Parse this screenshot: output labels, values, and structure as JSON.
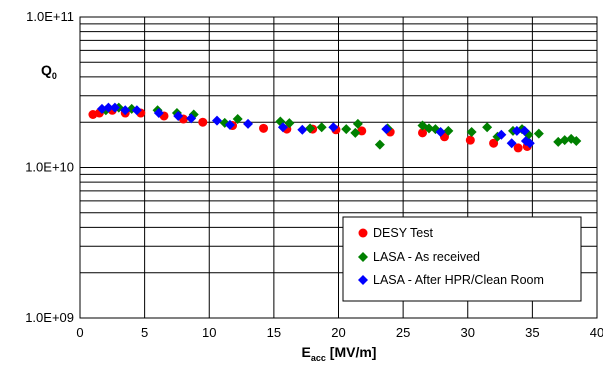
{
  "chart_data": {
    "type": "scatter",
    "title": "",
    "xlabel_main": "E",
    "xlabel_sub": "acc",
    "xlabel_unit": " [MV/m]",
    "ylabel_main": "Q",
    "ylabel_sub": "0",
    "xlim": [
      0,
      40
    ],
    "ylim": [
      1000000000,
      100000000000
    ],
    "yscale": "log",
    "grid": true,
    "legend_position": "lower-right",
    "x_ticks": [
      0,
      5,
      10,
      15,
      20,
      25,
      30,
      35,
      40
    ],
    "x_tick_labels": [
      "0",
      "5",
      "10",
      "15",
      "20",
      "25",
      "30",
      "35",
      "40"
    ],
    "y_ticks": [
      1000000000,
      10000000000,
      100000000000
    ],
    "y_tick_labels": [
      "1.0E+09",
      "1.0E+10",
      "1.0E+11"
    ],
    "series": [
      {
        "name": "DESY Test",
        "marker": "circle",
        "color": "#ff0000",
        "points": [
          [
            1.0,
            22500000000.0
          ],
          [
            1.5,
            23000000000.0
          ],
          [
            2.5,
            24000000000.0
          ],
          [
            3.5,
            23000000000.0
          ],
          [
            4.7,
            23000000000.0
          ],
          [
            6.5,
            22000000000.0
          ],
          [
            8.0,
            21000000000.0
          ],
          [
            9.5,
            20000000000.0
          ],
          [
            11.8,
            19000000000.0
          ],
          [
            14.2,
            18200000000.0
          ],
          [
            16.0,
            18000000000.0
          ],
          [
            18.0,
            18000000000.0
          ],
          [
            19.8,
            17800000000.0
          ],
          [
            21.8,
            17500000000.0
          ],
          [
            24.0,
            17200000000.0
          ],
          [
            26.5,
            17000000000.0
          ],
          [
            28.2,
            16000000000.0
          ],
          [
            30.2,
            15200000000.0
          ],
          [
            32.0,
            14500000000.0
          ],
          [
            33.9,
            13500000000.0
          ],
          [
            34.6,
            13800000000.0
          ]
        ]
      },
      {
        "name": "LASA - As received",
        "marker": "diamond",
        "color": "#008000",
        "points": [
          [
            2.0,
            24000000000.0
          ],
          [
            3.0,
            25000000000.0
          ],
          [
            4.0,
            24500000000.0
          ],
          [
            6.0,
            24000000000.0
          ],
          [
            7.5,
            23000000000.0
          ],
          [
            8.8,
            22500000000.0
          ],
          [
            11.2,
            19800000000.0
          ],
          [
            12.2,
            21000000000.0
          ],
          [
            15.5,
            20200000000.0
          ],
          [
            16.2,
            19700000000.0
          ],
          [
            17.8,
            18200000000.0
          ],
          [
            18.7,
            18500000000.0
          ],
          [
            20.6,
            18000000000.0
          ],
          [
            21.3,
            17000000000.0
          ],
          [
            21.5,
            19500000000.0
          ],
          [
            23.2,
            14200000000.0
          ],
          [
            23.8,
            18200000000.0
          ],
          [
            26.5,
            19000000000.0
          ],
          [
            27.0,
            18200000000.0
          ],
          [
            27.5,
            18000000000.0
          ],
          [
            28.5,
            17500000000.0
          ],
          [
            30.3,
            17200000000.0
          ],
          [
            31.5,
            18500000000.0
          ],
          [
            32.3,
            16000000000.0
          ],
          [
            33.5,
            17500000000.0
          ],
          [
            34.2,
            18000000000.0
          ],
          [
            34.7,
            16500000000.0
          ],
          [
            35.5,
            16800000000.0
          ],
          [
            37.0,
            14800000000.0
          ],
          [
            37.5,
            15200000000.0
          ],
          [
            38.0,
            15500000000.0
          ],
          [
            38.4,
            15000000000.0
          ]
        ]
      },
      {
        "name": "LASA - After HPR/Clean Room",
        "marker": "diamond",
        "color": "#0000ff",
        "points": [
          [
            1.7,
            24500000000.0
          ],
          [
            2.2,
            25000000000.0
          ],
          [
            2.7,
            25000000000.0
          ],
          [
            3.5,
            24000000000.0
          ],
          [
            4.4,
            24000000000.0
          ],
          [
            6.1,
            23000000000.0
          ],
          [
            7.6,
            22000000000.0
          ],
          [
            8.6,
            21200000000.0
          ],
          [
            10.6,
            20500000000.0
          ],
          [
            11.6,
            19200000000.0
          ],
          [
            13.0,
            19500000000.0
          ],
          [
            15.7,
            18500000000.0
          ],
          [
            17.2,
            17800000000.0
          ],
          [
            19.6,
            18500000000.0
          ],
          [
            23.7,
            18000000000.0
          ],
          [
            27.9,
            17200000000.0
          ],
          [
            32.6,
            16500000000.0
          ],
          [
            33.4,
            14500000000.0
          ],
          [
            33.8,
            17500000000.0
          ],
          [
            34.4,
            17500000000.0
          ],
          [
            34.8,
            14500000000.0
          ],
          [
            34.5,
            15000000000.0
          ]
        ]
      }
    ]
  }
}
